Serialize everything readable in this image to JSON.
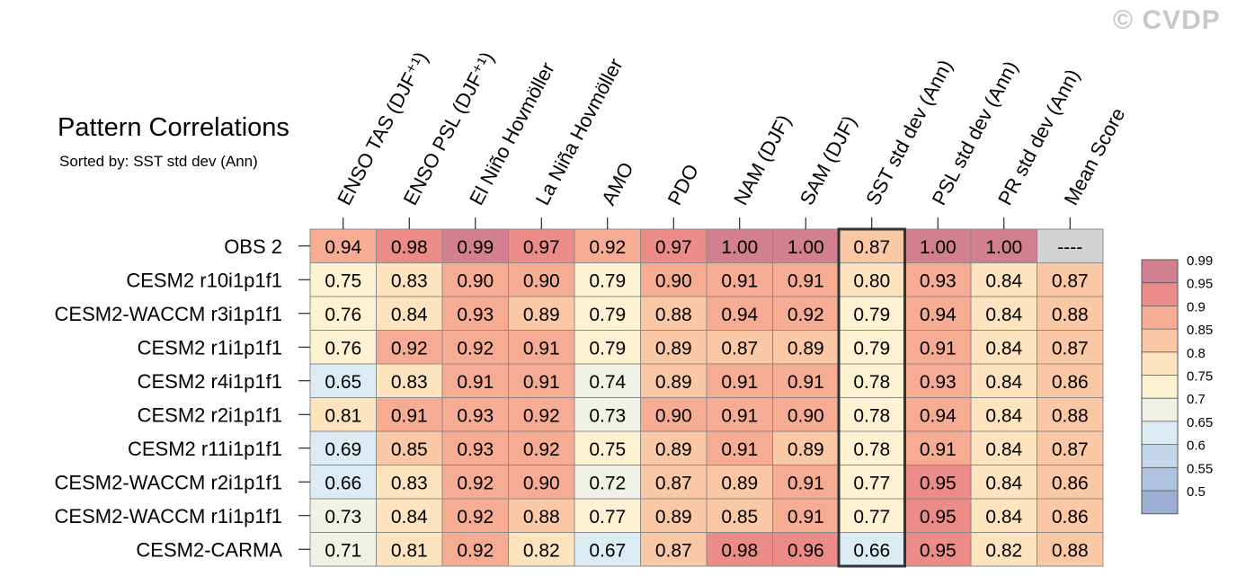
{
  "chart_data": {
    "type": "heatmap",
    "title": "Pattern Correlations",
    "subtitle": "Sorted by: SST std dev (Ann)",
    "watermark": "© CVDP",
    "columns": [
      "ENSO TAS (DJF⁺¹)",
      "ENSO PSL (DJF⁺¹)",
      "El Niño Hovmöller",
      "La Niña Hovmöller",
      "AMO",
      "PDO",
      "NAM (DJF)",
      "SAM (DJF)",
      "SST std dev (Ann)",
      "PSL std dev (Ann)",
      "PR std dev (Ann)",
      "Mean Score"
    ],
    "highlighted_column": "SST std dev (Ann)",
    "rows": [
      "OBS 2",
      "CESM2 r10i1p1f1",
      "CESM2-WACCM r3i1p1f1",
      "CESM2 r1i1p1f1",
      "CESM2 r4i1p1f1",
      "CESM2 r2i1p1f1",
      "CESM2 r11i1p1f1",
      "CESM2-WACCM r2i1p1f1",
      "CESM2-WACCM r1i1p1f1",
      "CESM2-CARMA"
    ],
    "values": [
      [
        "0.94",
        "0.98",
        "0.99",
        "0.97",
        "0.92",
        "0.97",
        "1.00",
        "1.00",
        "0.87",
        "1.00",
        "1.00",
        "----"
      ],
      [
        "0.75",
        "0.83",
        "0.90",
        "0.90",
        "0.79",
        "0.90",
        "0.91",
        "0.91",
        "0.80",
        "0.93",
        "0.84",
        "0.87"
      ],
      [
        "0.76",
        "0.84",
        "0.93",
        "0.89",
        "0.79",
        "0.88",
        "0.94",
        "0.92",
        "0.79",
        "0.94",
        "0.84",
        "0.88"
      ],
      [
        "0.76",
        "0.92",
        "0.92",
        "0.91",
        "0.79",
        "0.89",
        "0.87",
        "0.89",
        "0.79",
        "0.91",
        "0.84",
        "0.87"
      ],
      [
        "0.65",
        "0.83",
        "0.91",
        "0.91",
        "0.74",
        "0.89",
        "0.91",
        "0.91",
        "0.78",
        "0.93",
        "0.84",
        "0.86"
      ],
      [
        "0.81",
        "0.91",
        "0.93",
        "0.92",
        "0.73",
        "0.90",
        "0.91",
        "0.90",
        "0.78",
        "0.94",
        "0.84",
        "0.88"
      ],
      [
        "0.69",
        "0.85",
        "0.93",
        "0.92",
        "0.75",
        "0.89",
        "0.91",
        "0.89",
        "0.78",
        "0.91",
        "0.84",
        "0.87"
      ],
      [
        "0.66",
        "0.83",
        "0.92",
        "0.90",
        "0.72",
        "0.87",
        "0.89",
        "0.91",
        "0.77",
        "0.95",
        "0.84",
        "0.86"
      ],
      [
        "0.73",
        "0.84",
        "0.92",
        "0.88",
        "0.77",
        "0.89",
        "0.85",
        "0.91",
        "0.77",
        "0.95",
        "0.84",
        "0.86"
      ],
      [
        "0.71",
        "0.81",
        "0.92",
        "0.82",
        "0.67",
        "0.87",
        "0.98",
        "0.96",
        "0.66",
        "0.95",
        "0.82",
        "0.88"
      ]
    ],
    "missing_color": "#d3d3d3",
    "colorbar": {
      "bounds": [
        0.5,
        0.55,
        0.6,
        0.65,
        0.7,
        0.75,
        0.8,
        0.85,
        0.9,
        0.95,
        0.99
      ],
      "labels": [
        "0.5",
        "0.55",
        "0.6",
        "0.65",
        "0.7",
        "0.75",
        "0.8",
        "0.85",
        "0.9",
        "0.95",
        "0.99"
      ],
      "colors": [
        "#9badd1",
        "#adc3df",
        "#c4d8ea",
        "#dcecf4",
        "#f1f1e6",
        "#fdf2d1",
        "#fde3be",
        "#fbc8a5",
        "#f6ac93",
        "#eb8c88",
        "#d17f91"
      ]
    }
  }
}
